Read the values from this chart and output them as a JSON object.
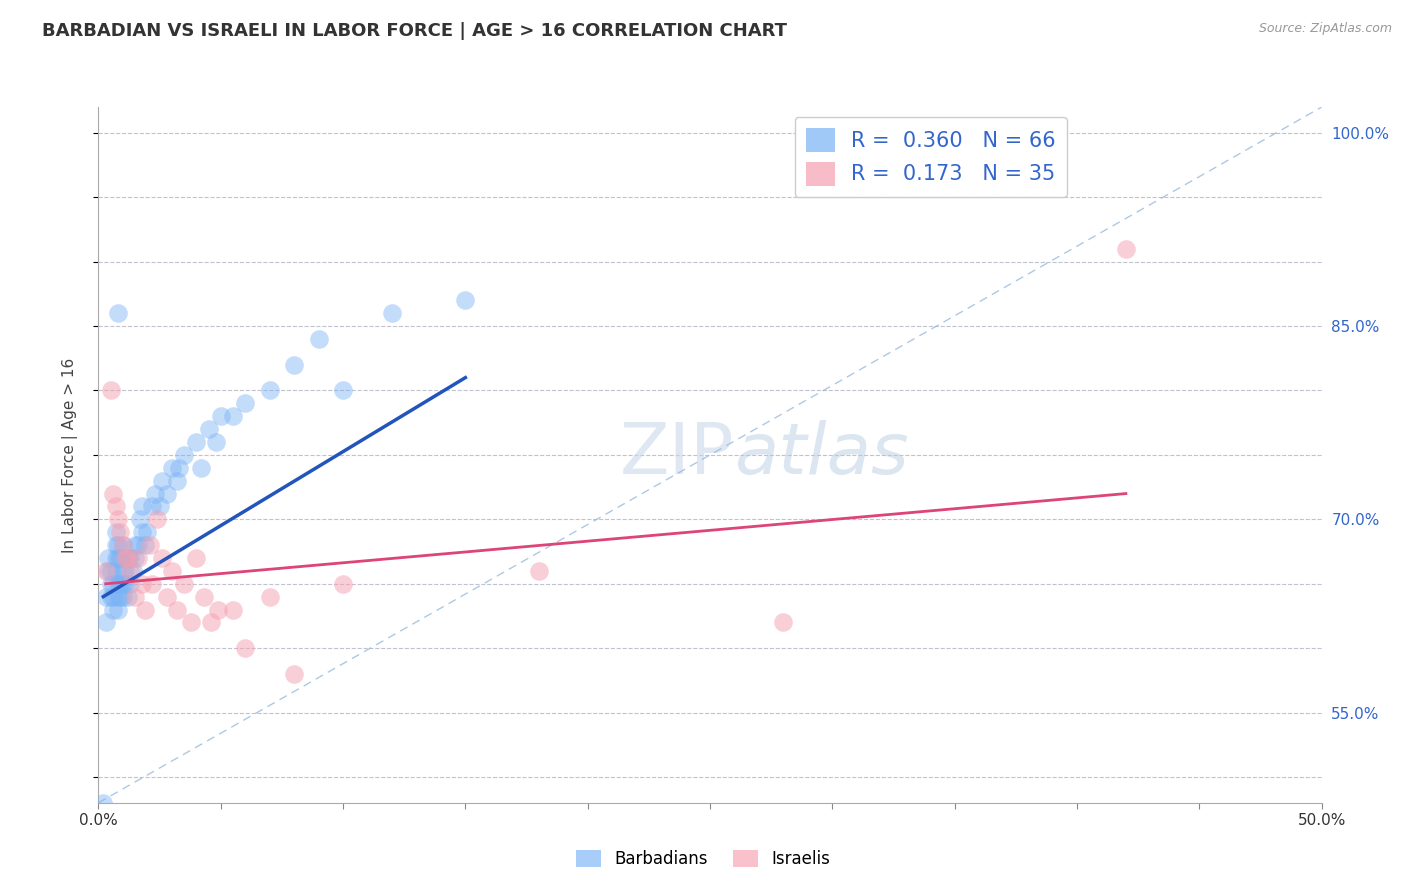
{
  "title": "BARBADIAN VS ISRAELI IN LABOR FORCE | AGE > 16 CORRELATION CHART",
  "source_text": "Source: ZipAtlas.com",
  "ylabel": "In Labor Force | Age > 16",
  "xlim": [
    0.0,
    0.5
  ],
  "ylim": [
    0.48,
    1.02
  ],
  "ytick_positions": [
    0.5,
    0.55,
    0.6,
    0.65,
    0.7,
    0.75,
    0.8,
    0.85,
    0.9,
    0.95,
    1.0
  ],
  "ytick_labels_right": [
    "",
    "55.0%",
    "",
    "",
    "70.0%",
    "",
    "",
    "85.0%",
    "",
    "",
    "100.0%"
  ],
  "xtick_positions": [
    0.0,
    0.05,
    0.1,
    0.15,
    0.2,
    0.25,
    0.3,
    0.35,
    0.4,
    0.45,
    0.5
  ],
  "xtick_labels": [
    "0.0%",
    "",
    "",
    "",
    "",
    "",
    "",
    "",
    "",
    "",
    "50.0%"
  ],
  "grid_color": "#bbbbcc",
  "background_color": "#ffffff",
  "barbadian_color": "#7ab3f5",
  "israeli_color": "#f5a0b0",
  "barbadian_R": 0.36,
  "barbadian_N": 66,
  "israeli_R": 0.173,
  "israeli_N": 35,
  "ref_line_color": "#99bbdd",
  "barbadian_line_color": "#2255bb",
  "israeli_line_color": "#dd4477",
  "barbadian_x": [
    0.002,
    0.003,
    0.003,
    0.004,
    0.004,
    0.005,
    0.005,
    0.005,
    0.006,
    0.006,
    0.006,
    0.007,
    0.007,
    0.007,
    0.007,
    0.008,
    0.008,
    0.008,
    0.008,
    0.008,
    0.009,
    0.009,
    0.009,
    0.01,
    0.01,
    0.01,
    0.01,
    0.011,
    0.011,
    0.011,
    0.012,
    0.012,
    0.013,
    0.013,
    0.014,
    0.015,
    0.015,
    0.016,
    0.017,
    0.018,
    0.018,
    0.019,
    0.02,
    0.022,
    0.023,
    0.025,
    0.026,
    0.028,
    0.03,
    0.032,
    0.033,
    0.035,
    0.04,
    0.042,
    0.045,
    0.048,
    0.05,
    0.055,
    0.06,
    0.07,
    0.08,
    0.09,
    0.1,
    0.12,
    0.15,
    0.008
  ],
  "barbadian_y": [
    0.48,
    0.62,
    0.64,
    0.66,
    0.67,
    0.64,
    0.65,
    0.66,
    0.63,
    0.64,
    0.65,
    0.66,
    0.67,
    0.68,
    0.69,
    0.63,
    0.64,
    0.65,
    0.67,
    0.68,
    0.64,
    0.65,
    0.67,
    0.64,
    0.65,
    0.66,
    0.68,
    0.65,
    0.66,
    0.67,
    0.64,
    0.67,
    0.65,
    0.67,
    0.66,
    0.67,
    0.68,
    0.68,
    0.7,
    0.69,
    0.71,
    0.68,
    0.69,
    0.71,
    0.72,
    0.71,
    0.73,
    0.72,
    0.74,
    0.73,
    0.74,
    0.75,
    0.76,
    0.74,
    0.77,
    0.76,
    0.78,
    0.78,
    0.79,
    0.8,
    0.82,
    0.84,
    0.8,
    0.86,
    0.87,
    0.86
  ],
  "israeli_x": [
    0.003,
    0.005,
    0.006,
    0.007,
    0.008,
    0.009,
    0.01,
    0.011,
    0.012,
    0.013,
    0.015,
    0.016,
    0.018,
    0.019,
    0.021,
    0.022,
    0.024,
    0.026,
    0.028,
    0.03,
    0.032,
    0.035,
    0.038,
    0.04,
    0.043,
    0.046,
    0.049,
    0.055,
    0.06,
    0.07,
    0.08,
    0.1,
    0.18,
    0.28,
    0.42
  ],
  "israeli_y": [
    0.66,
    0.8,
    0.72,
    0.71,
    0.7,
    0.69,
    0.68,
    0.67,
    0.67,
    0.66,
    0.64,
    0.67,
    0.65,
    0.63,
    0.68,
    0.65,
    0.7,
    0.67,
    0.64,
    0.66,
    0.63,
    0.65,
    0.62,
    0.67,
    0.64,
    0.62,
    0.63,
    0.63,
    0.6,
    0.64,
    0.58,
    0.65,
    0.66,
    0.62,
    0.91
  ],
  "barbadian_line_x": [
    0.002,
    0.15
  ],
  "barbadian_line_y": [
    0.64,
    0.81
  ],
  "israeli_line_x": [
    0.003,
    0.42
  ],
  "israeli_line_y": [
    0.65,
    0.72
  ]
}
